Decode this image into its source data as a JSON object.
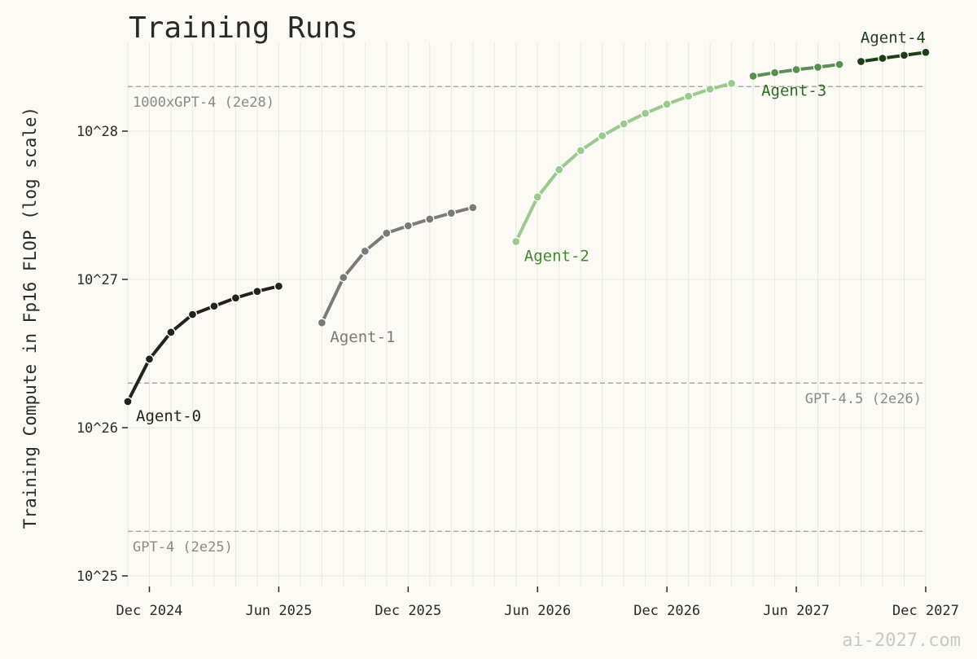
{
  "watermark": "ai-2027.com",
  "colors": {
    "background": "#fbfaf5",
    "grid": "#e9e9e4",
    "reference_line": "#9a9a9a"
  },
  "chart_data": {
    "type": "line",
    "title": "Training Runs",
    "xlabel": "",
    "ylabel": "Training Compute in Fp16 FLOP (log scale)",
    "yscale": "log",
    "grid": true,
    "xlim": [
      "2024-11",
      "2027-12"
    ],
    "ylim": [
      1e+25,
      5e+28
    ],
    "x_ticks": [
      {
        "date": "2024-12",
        "label": "Dec 2024"
      },
      {
        "date": "2025-06",
        "label": "Jun 2025"
      },
      {
        "date": "2025-12",
        "label": "Dec 2025"
      },
      {
        "date": "2026-06",
        "label": "Jun 2026"
      },
      {
        "date": "2026-12",
        "label": "Dec 2026"
      },
      {
        "date": "2027-06",
        "label": "Jun 2027"
      },
      {
        "date": "2027-12",
        "label": "Dec 2027"
      }
    ],
    "y_ticks": [
      {
        "value": 1e+25,
        "label": "10^25"
      },
      {
        "value": 1e+26,
        "label": "10^26"
      },
      {
        "value": 1e+27,
        "label": "10^27"
      },
      {
        "value": 1e+28,
        "label": "10^28"
      }
    ],
    "reference_lines": [
      {
        "value": 2e+25,
        "label": "GPT-4 (2e25)",
        "label_align": "left"
      },
      {
        "value": 2e+26,
        "label": "GPT-4.5 (2e26)",
        "label_align": "right"
      },
      {
        "value": 2e+28,
        "label": "1000xGPT-4 (2e28)",
        "label_align": "left"
      }
    ],
    "series": [
      {
        "name": "Agent-0",
        "color": "#222222",
        "label_color": "#222222",
        "label_anchor": "first",
        "x": [
          "2024-11",
          "2024-12",
          "2025-01",
          "2025-02",
          "2025-03",
          "2025-04",
          "2025-05",
          "2025-06"
        ],
        "y": [
          1.5e+26,
          2.9e+26,
          4.4e+26,
          5.8e+26,
          6.6e+26,
          7.5e+26,
          8.3e+26,
          9e+26
        ]
      },
      {
        "name": "Agent-1",
        "color": "#7a7a7a",
        "label_color": "#7a7a7a",
        "label_anchor": "first",
        "x": [
          "2025-08",
          "2025-09",
          "2025-10",
          "2025-11",
          "2025-12",
          "2026-01",
          "2026-02",
          "2026-03"
        ],
        "y": [
          5.1e+26,
          1.03e+27,
          1.55e+27,
          2.05e+27,
          2.3e+27,
          2.55e+27,
          2.8e+27,
          3.05e+27
        ]
      },
      {
        "name": "Agent-2",
        "color": "#9cc98f",
        "label_color": "#3f8a2e",
        "label_anchor": "first",
        "x": [
          "2026-05",
          "2026-06",
          "2026-07",
          "2026-08",
          "2026-09",
          "2026-10",
          "2026-11",
          "2026-12",
          "2027-01",
          "2027-02",
          "2027-03"
        ],
        "y": [
          1.8e+27,
          3.6e+27,
          5.5e+27,
          7.4e+27,
          9.3e+27,
          1.12e+28,
          1.32e+28,
          1.52e+28,
          1.72e+28,
          1.92e+28,
          2.1e+28
        ]
      },
      {
        "name": "Agent-3",
        "color": "#5c8d52",
        "label_color": "#2f6b22",
        "label_anchor": "first",
        "x": [
          "2027-04",
          "2027-05",
          "2027-06",
          "2027-07",
          "2027-08"
        ],
        "y": [
          2.35e+28,
          2.48e+28,
          2.6e+28,
          2.7e+28,
          2.82e+28
        ]
      },
      {
        "name": "Agent-4",
        "color": "#1f3e17",
        "label_color": "#1f3e17",
        "label_anchor": "last",
        "x": [
          "2027-09",
          "2027-10",
          "2027-11",
          "2027-12"
        ],
        "y": [
          2.95e+28,
          3.1e+28,
          3.25e+28,
          3.4e+28
        ]
      }
    ]
  }
}
